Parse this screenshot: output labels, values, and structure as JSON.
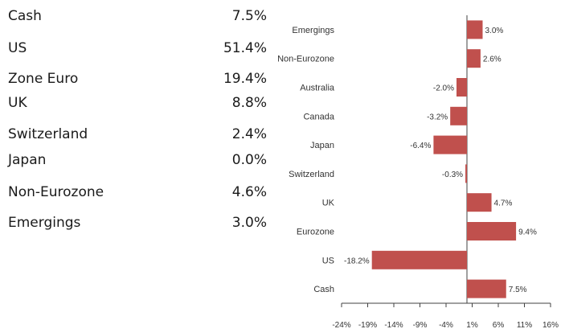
{
  "allocation": [
    {
      "name": "Cash",
      "value": "7.5%"
    },
    {
      "name": "US",
      "value": "51.4%"
    },
    {
      "name": "Zone Euro",
      "value": "19.4%"
    },
    {
      "name": "UK",
      "value": "8.8%"
    },
    {
      "name": "Switzerland",
      "value": "2.4%"
    },
    {
      "name": "Japan",
      "value": "0.0%"
    },
    {
      "name": "Non-Eurozone",
      "value": "4.6%"
    },
    {
      "name": "Emergings",
      "value": "3.0%"
    }
  ],
  "chart_data": {
    "type": "bar",
    "orientation": "horizontal",
    "categories": [
      "Emergings",
      "Non-Eurozone",
      "Australia",
      "Canada",
      "Japan",
      "Switzerland",
      "UK",
      "Eurozone",
      "US",
      "Cash"
    ],
    "values": [
      3.0,
      2.6,
      -2.0,
      -3.2,
      -6.4,
      -0.3,
      4.7,
      9.4,
      -18.2,
      7.5
    ],
    "value_labels": [
      "3.0%",
      "2.6%",
      "-2.0%",
      "-3.2%",
      "-6.4%",
      "-0.3%",
      "4.7%",
      "9.4%",
      "-18.2%",
      "7.5%"
    ],
    "xticks": [
      -24,
      -19,
      -14,
      -9,
      -4,
      1,
      6,
      11,
      16
    ],
    "xtick_labels": [
      "-24%",
      "-19%",
      "-14%",
      "-9%",
      "-4%",
      "1%",
      "6%",
      "11%",
      "16%"
    ],
    "xlim": [
      -24,
      16
    ],
    "bar_color": "#c0504d",
    "grid": false,
    "title": "",
    "xlabel": "",
    "ylabel": ""
  }
}
